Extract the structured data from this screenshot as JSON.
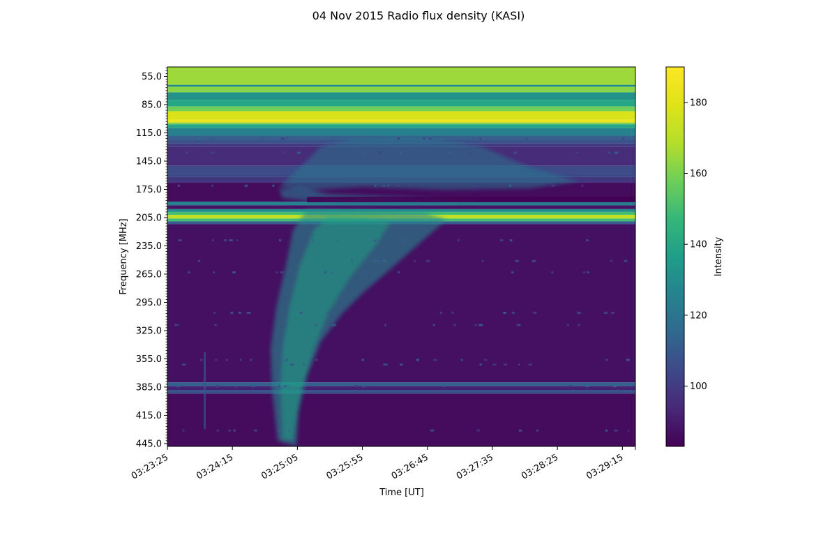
{
  "chart_data": {
    "type": "heatmap",
    "title": "04 Nov 2015 Radio flux density (KASI)",
    "xlabel": "Time [UT]",
    "ylabel": "Frequency [MHz]",
    "colorbar_label": "Intensity",
    "colormap": "viridis",
    "x_tick_labels": [
      "03:23:25",
      "03:24:15",
      "03:25:05",
      "03:25:55",
      "03:26:45",
      "03:27:35",
      "03:28:25",
      "03:29:15"
    ],
    "x_range": [
      "03:23:25",
      "03:29:25"
    ],
    "y_tick_labels": [
      "55.0",
      "85.0",
      "115.0",
      "145.0",
      "175.0",
      "205.0",
      "235.0",
      "265.0",
      "295.0",
      "325.0",
      "355.0",
      "385.0",
      "415.0",
      "445.0"
    ],
    "y_range": [
      45,
      448
    ],
    "y_inverted": true,
    "colorbar_ticks": [
      "100",
      "120",
      "140",
      "160",
      "180"
    ],
    "colorbar_range": [
      83,
      190
    ],
    "background_bands_mhz": [
      {
        "from": 45,
        "to": 64,
        "intensity": 165
      },
      {
        "from": 64,
        "to": 66,
        "intensity": 128
      },
      {
        "from": 66,
        "to": 72,
        "intensity": 162
      },
      {
        "from": 72,
        "to": 80,
        "intensity": 132
      },
      {
        "from": 80,
        "to": 87,
        "intensity": 140
      },
      {
        "from": 87,
        "to": 92,
        "intensity": 158
      },
      {
        "from": 92,
        "to": 101,
        "intensity": 178
      },
      {
        "from": 101,
        "to": 104,
        "intensity": 185
      },
      {
        "from": 104,
        "to": 106,
        "intensity": 160
      },
      {
        "from": 106,
        "to": 110,
        "intensity": 140
      },
      {
        "from": 110,
        "to": 118,
        "intensity": 125
      },
      {
        "from": 118,
        "to": 122,
        "intensity": 112
      },
      {
        "from": 122,
        "to": 126,
        "intensity": 108
      },
      {
        "from": 126,
        "to": 130,
        "intensity": 100
      },
      {
        "from": 130,
        "to": 150,
        "intensity": 95
      },
      {
        "from": 150,
        "to": 162,
        "intensity": 105
      },
      {
        "from": 162,
        "to": 168,
        "intensity": 98
      },
      {
        "from": 168,
        "to": 188,
        "intensity": 86
      },
      {
        "from": 188,
        "to": 192,
        "intensity": 125
      },
      {
        "from": 192,
        "to": 196,
        "intensity": 88
      },
      {
        "from": 196,
        "to": 199,
        "intensity": 130
      },
      {
        "from": 199,
        "to": 202,
        "intensity": 150
      },
      {
        "from": 202,
        "to": 206,
        "intensity": 172
      },
      {
        "from": 206,
        "to": 209,
        "intensity": 150
      },
      {
        "from": 209,
        "to": 212,
        "intensity": 110
      },
      {
        "from": 212,
        "to": 380,
        "intensity": 87
      },
      {
        "from": 380,
        "to": 384,
        "intensity": 112
      },
      {
        "from": 384,
        "to": 388,
        "intensity": 92
      },
      {
        "from": 388,
        "to": 392,
        "intensity": 108
      },
      {
        "from": 392,
        "to": 448,
        "intensity": 86
      }
    ]
  }
}
